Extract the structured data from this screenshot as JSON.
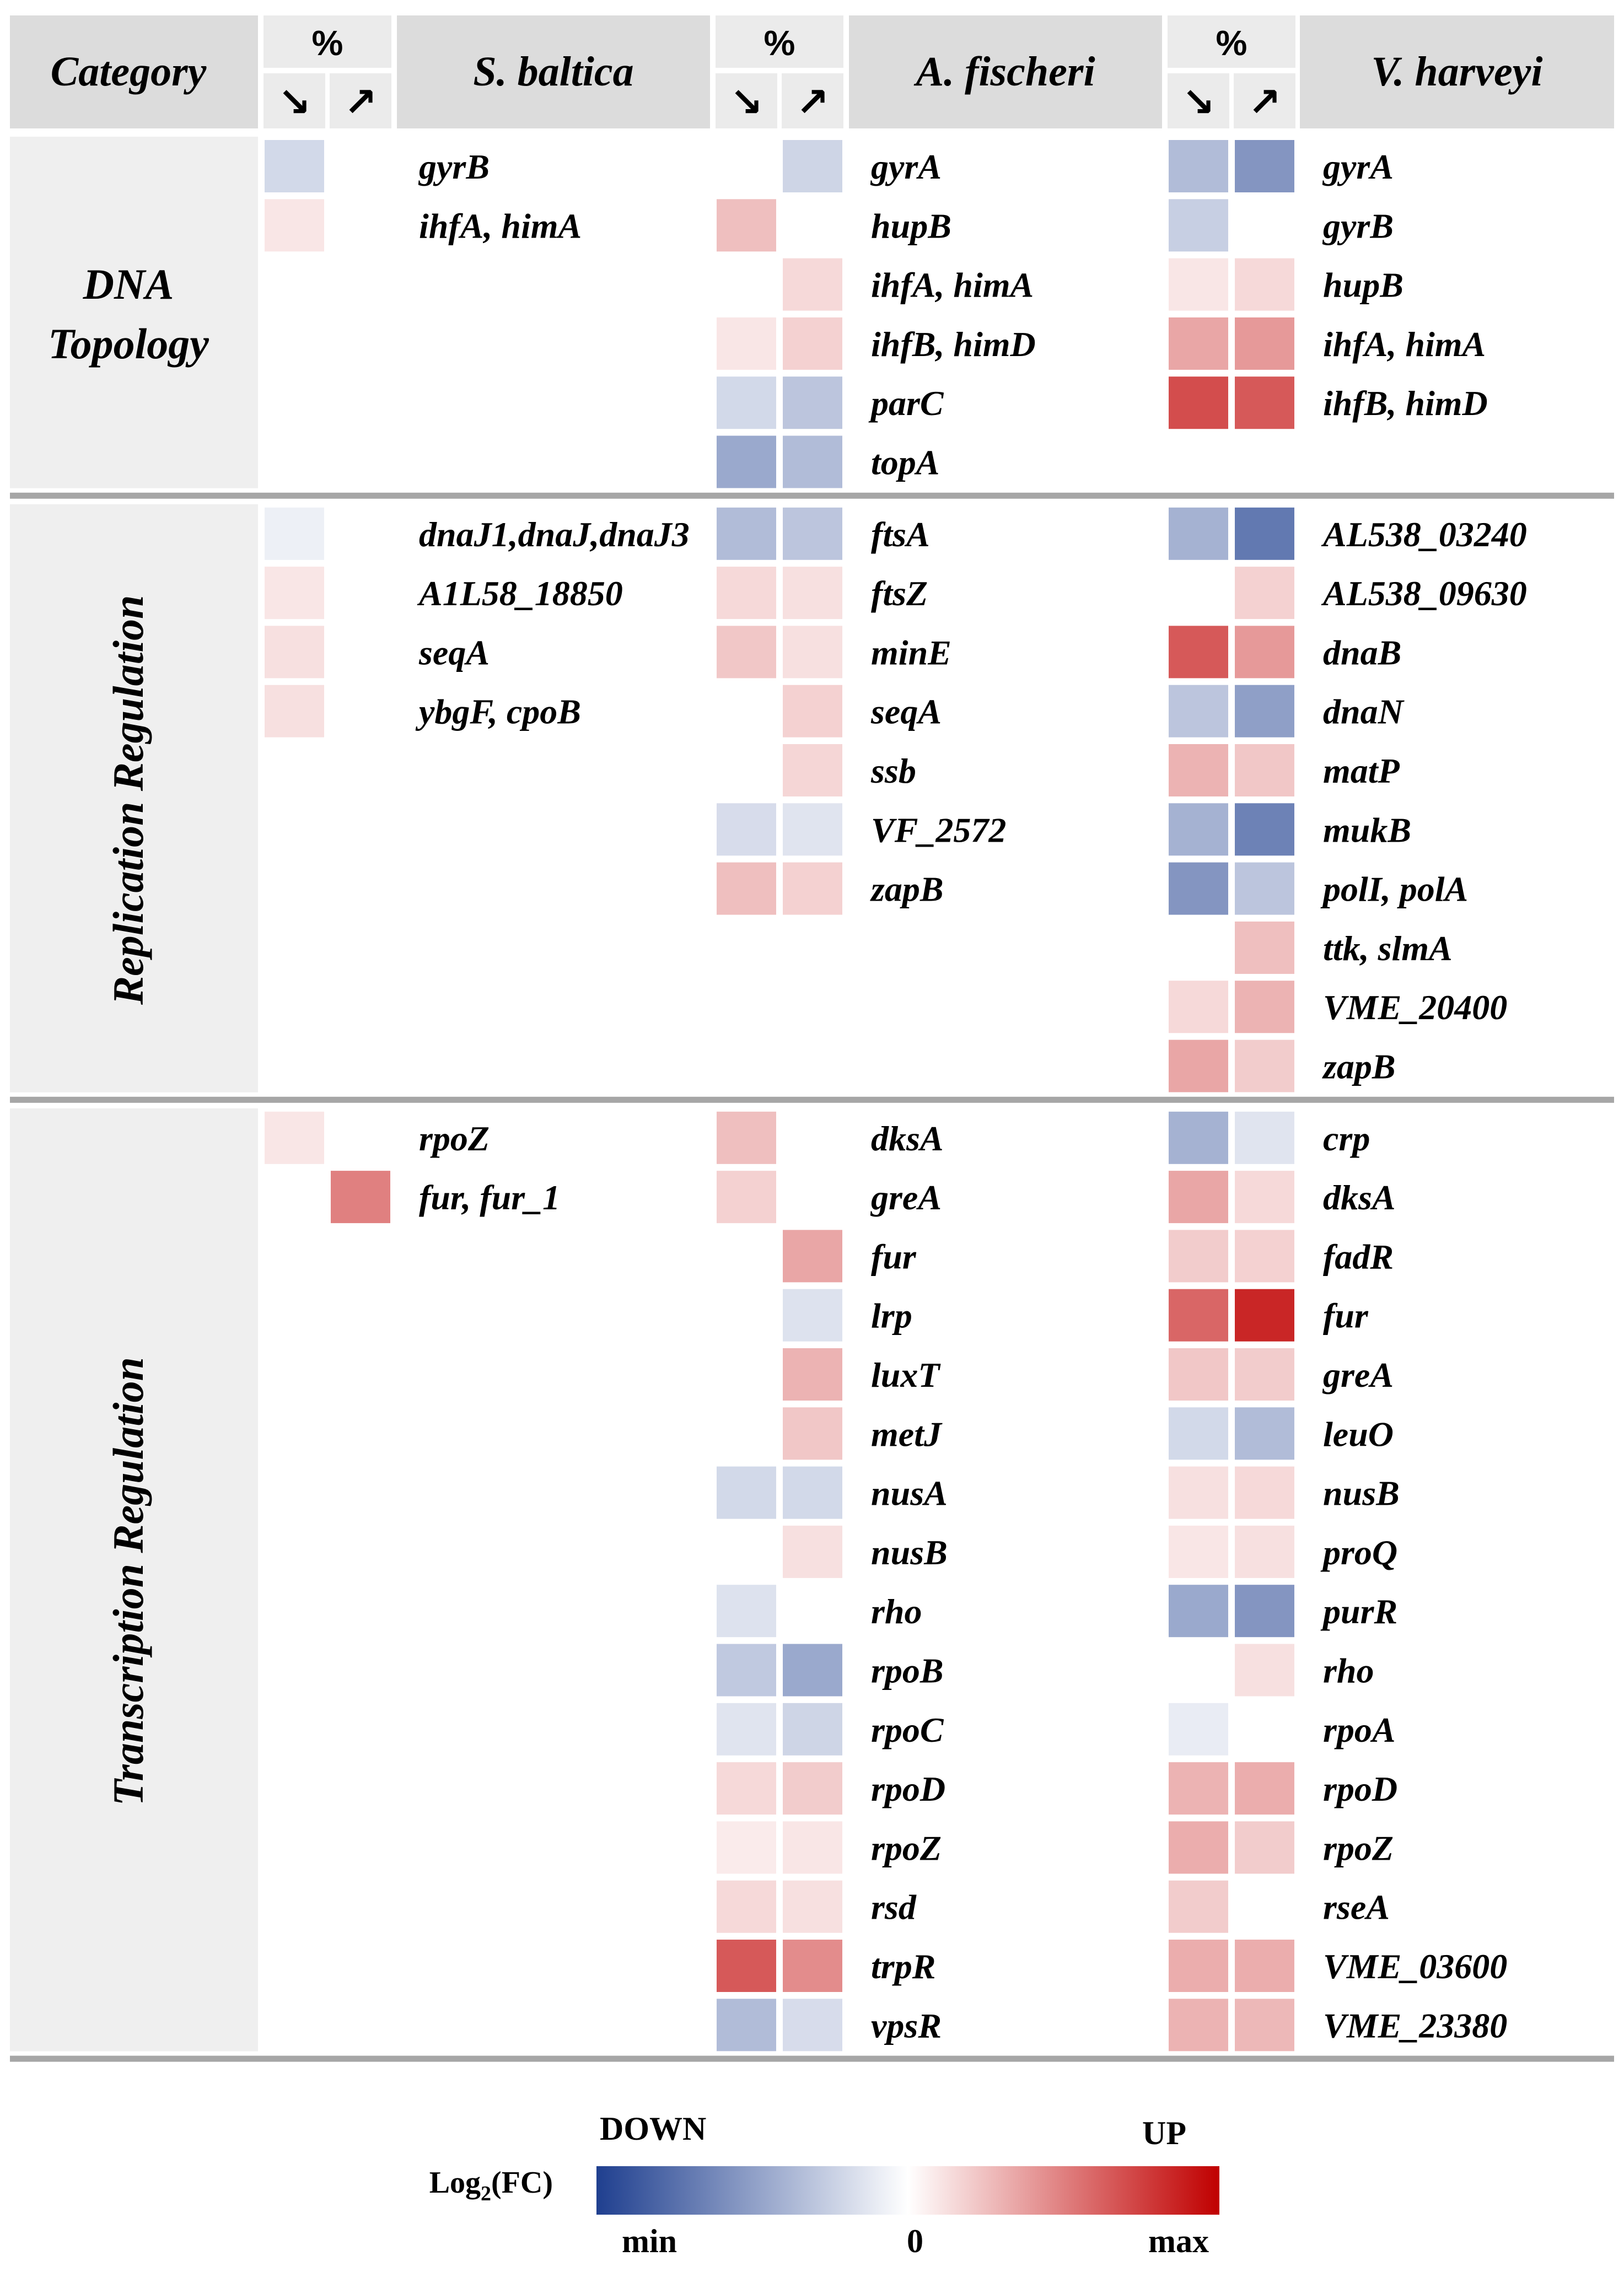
{
  "chart_data": {
    "type": "heatmap",
    "title": "",
    "header": {
      "category": "Category",
      "percent": "%",
      "down_arrow": "↘",
      "up_arrow": "↗",
      "species": [
        "S. baltica",
        "A. fischeri",
        "V. harveyi"
      ]
    },
    "categories": [
      {
        "name": "DNA Topology",
        "label_lines": [
          "DNA",
          "Topology"
        ],
        "orientation": "horizontal",
        "rows": 6,
        "species": [
          {
            "genes": [
              {
                "name": "gyrB",
                "down": -0.2,
                "up": 0.0
              },
              {
                "name": "ihfA, himA",
                "down": 0.1,
                "up": 0.0
              }
            ]
          },
          {
            "genes": [
              {
                "name": "gyrA",
                "down": 0.0,
                "up": -0.22
              },
              {
                "name": "hupB",
                "down": 0.25,
                "up": 0.0
              },
              {
                "name": "ihfA, himA",
                "down": 0.0,
                "up": 0.15
              },
              {
                "name": "ihfB, himD",
                "down": 0.1,
                "up": 0.18
              },
              {
                "name": "parC",
                "down": -0.2,
                "up": -0.3
              },
              {
                "name": "topA",
                "down": -0.45,
                "up": -0.35
              }
            ]
          },
          {
            "genes": [
              {
                "name": "gyrA",
                "down": -0.35,
                "up": -0.55
              },
              {
                "name": "gyrB",
                "down": -0.25,
                "up": 0.0
              },
              {
                "name": "hupB",
                "down": 0.1,
                "up": 0.15
              },
              {
                "name": "ihfA, himA",
                "down": 0.35,
                "up": 0.4
              },
              {
                "name": "ihfB, himD",
                "down": 0.7,
                "up": 0.65
              }
            ]
          }
        ]
      },
      {
        "name": "Replication Regulation",
        "label_lines": [
          "Replication Regulation"
        ],
        "orientation": "vertical",
        "rows": 10,
        "species": [
          {
            "genes": [
              {
                "name": "dnaJ1,dnaJ,dnaJ3",
                "down": -0.08,
                "up": 0.0
              },
              {
                "name": "A1L58_18850",
                "down": 0.1,
                "up": 0.0
              },
              {
                "name": "seqA",
                "down": 0.12,
                "up": 0.0
              },
              {
                "name": "ybgF, cpoB",
                "down": 0.12,
                "up": 0.0
              }
            ]
          },
          {
            "genes": [
              {
                "name": "ftsA",
                "down": -0.35,
                "up": -0.3
              },
              {
                "name": "ftsZ",
                "down": 0.15,
                "up": 0.12
              },
              {
                "name": "minE",
                "down": 0.22,
                "up": 0.12
              },
              {
                "name": "seqA",
                "down": 0.0,
                "up": 0.18
              },
              {
                "name": "ssb",
                "down": 0.0,
                "up": 0.16
              },
              {
                "name": "VF_2572",
                "down": -0.18,
                "up": -0.14
              },
              {
                "name": "zapB",
                "down": 0.25,
                "up": 0.18
              }
            ]
          },
          {
            "genes": [
              {
                "name": "AL538_03240",
                "down": -0.4,
                "up": -0.7
              },
              {
                "name": "AL538_09630",
                "down": 0.0,
                "up": 0.18
              },
              {
                "name": "dnaB",
                "down": 0.65,
                "up": 0.4
              },
              {
                "name": "dnaN",
                "down": -0.3,
                "up": -0.5
              },
              {
                "name": "matP",
                "down": 0.3,
                "up": 0.22
              },
              {
                "name": "mukB",
                "down": -0.4,
                "up": -0.65
              },
              {
                "name": "polI, polA",
                "down": -0.55,
                "up": -0.3
              },
              {
                "name": "ttk, slmA",
                "down": 0.0,
                "up": 0.25
              },
              {
                "name": "VME_20400",
                "down": 0.15,
                "up": 0.3
              },
              {
                "name": "zapB",
                "down": 0.35,
                "up": 0.2
              }
            ]
          }
        ]
      },
      {
        "name": "Transcription Regulation",
        "label_lines": [
          "Transcription Regulation"
        ],
        "orientation": "vertical",
        "rows": 16,
        "species": [
          {
            "genes": [
              {
                "name": "rpoZ",
                "down": 0.1,
                "up": 0.0
              },
              {
                "name": "fur, fur_1",
                "down": 0.0,
                "up": 0.5
              }
            ]
          },
          {
            "genes": [
              {
                "name": "dksA",
                "down": 0.25,
                "up": 0.0
              },
              {
                "name": "greA",
                "down": 0.18,
                "up": 0.0
              },
              {
                "name": "fur",
                "down": 0.0,
                "up": 0.35
              },
              {
                "name": "lrp",
                "down": 0.0,
                "up": -0.15
              },
              {
                "name": "luxT",
                "down": 0.0,
                "up": 0.3
              },
              {
                "name": "metJ",
                "down": 0.0,
                "up": 0.22
              },
              {
                "name": "nusA",
                "down": -0.2,
                "up": -0.2
              },
              {
                "name": "nusB",
                "down": 0.0,
                "up": 0.12
              },
              {
                "name": "rho",
                "down": -0.15,
                "up": 0.0
              },
              {
                "name": "rpoB",
                "down": -0.28,
                "up": -0.45
              },
              {
                "name": "rpoC",
                "down": -0.14,
                "up": -0.22
              },
              {
                "name": "rpoD",
                "down": 0.15,
                "up": 0.2
              },
              {
                "name": "rpoZ",
                "down": 0.08,
                "up": 0.1
              },
              {
                "name": "rsd",
                "down": 0.15,
                "up": 0.12
              },
              {
                "name": "trpR",
                "down": 0.65,
                "up": 0.45
              },
              {
                "name": "vpsR",
                "down": -0.35,
                "up": -0.18
              }
            ]
          },
          {
            "genes": [
              {
                "name": "crp",
                "down": -0.4,
                "up": -0.14
              },
              {
                "name": "dksA",
                "down": 0.35,
                "up": 0.15
              },
              {
                "name": "fadR",
                "down": 0.2,
                "up": 0.18
              },
              {
                "name": "fur",
                "down": 0.6,
                "up": 0.85
              },
              {
                "name": "greA",
                "down": 0.22,
                "up": 0.2
              },
              {
                "name": "leuO",
                "down": -0.2,
                "up": -0.35
              },
              {
                "name": "nusB",
                "down": 0.12,
                "up": 0.15
              },
              {
                "name": "proQ",
                "down": 0.1,
                "up": 0.12
              },
              {
                "name": "purR",
                "down": -0.45,
                "up": -0.55
              },
              {
                "name": "rho",
                "down": 0.0,
                "up": 0.12
              },
              {
                "name": "rpoA",
                "down": -0.1,
                "up": 0.0
              },
              {
                "name": "rpoD",
                "down": 0.3,
                "up": 0.32
              },
              {
                "name": "rpoZ",
                "down": 0.32,
                "up": 0.2
              },
              {
                "name": "rseA",
                "down": 0.2,
                "up": 0.0
              },
              {
                "name": "VME_03600",
                "down": 0.32,
                "up": 0.32
              },
              {
                "name": "VME_23380",
                "down": 0.3,
                "up": 0.28
              }
            ]
          }
        ]
      }
    ],
    "colors": {
      "min": "#1f3f8f",
      "mid": "#ffffff",
      "max": "#c00000",
      "category_bg": "#efefef",
      "header_bg": "#dcdcdc",
      "separator": "#a6a6a6",
      "text": "#000000"
    },
    "legend": {
      "down_label": "DOWN",
      "up_label": "UP",
      "metric_label": "Log",
      "metric_sub": "2",
      "metric_suffix": "(FC)",
      "min_label": "min",
      "zero_label": "0",
      "max_label": "max",
      "value_range": [
        -1,
        1
      ]
    }
  }
}
